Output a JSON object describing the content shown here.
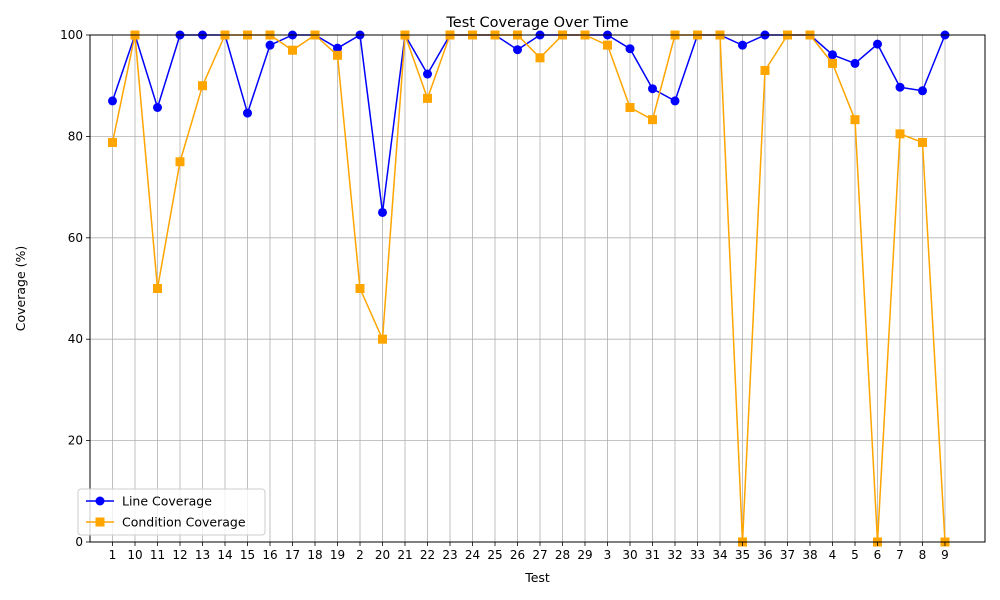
{
  "chart_data": {
    "type": "line",
    "title": "Test Coverage Over Time",
    "xlabel": "Test",
    "ylabel": "Coverage (%)",
    "ylim": [
      0,
      100
    ],
    "yticks": [
      0,
      20,
      40,
      60,
      80,
      100
    ],
    "grid": true,
    "legend_position": "lower-left",
    "categories": [
      "1",
      "10",
      "11",
      "12",
      "13",
      "14",
      "15",
      "16",
      "17",
      "18",
      "19",
      "2",
      "20",
      "21",
      "22",
      "23",
      "24",
      "25",
      "26",
      "27",
      "28",
      "29",
      "3",
      "30",
      "31",
      "32",
      "33",
      "34",
      "35",
      "36",
      "37",
      "38",
      "4",
      "5",
      "6",
      "7",
      "8",
      "9"
    ],
    "series": [
      {
        "name": "Line Coverage",
        "color": "#0000ff",
        "marker": "circle",
        "values": [
          87,
          100,
          85.7,
          100,
          100,
          100,
          84.6,
          98,
          100,
          100,
          97.4,
          100,
          65,
          100,
          92.3,
          100,
          100,
          100,
          97.1,
          100,
          100,
          100,
          100,
          97.3,
          89.4,
          87,
          100,
          100,
          98,
          100,
          100,
          100,
          96.1,
          94.4,
          98.2,
          89.7,
          89,
          100
        ]
      },
      {
        "name": "Condition Coverage",
        "color": "#ffa500",
        "marker": "square",
        "values": [
          78.8,
          100,
          50,
          75,
          90,
          100,
          100,
          100,
          97,
          100,
          96,
          50,
          40,
          100,
          87.5,
          100,
          100,
          100,
          100,
          95.5,
          100,
          100,
          98,
          85.7,
          83.3,
          100,
          100,
          100,
          0,
          93,
          100,
          100,
          94.4,
          83.3,
          0,
          80.5,
          78.8,
          0
        ]
      }
    ]
  }
}
